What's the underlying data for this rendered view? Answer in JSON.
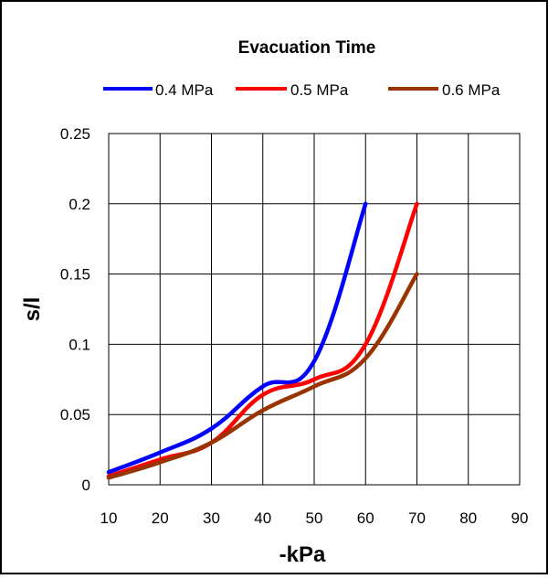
{
  "chart_data": {
    "type": "line",
    "title": "Evacuation Time",
    "xlabel": "-kPa",
    "ylabel": "s/l",
    "xlim": [
      10,
      90
    ],
    "ylim": [
      0,
      0.25
    ],
    "x_ticks": [
      "10",
      "20",
      "30",
      "40",
      "50",
      "60",
      "70",
      "80",
      "90"
    ],
    "y_ticks": [
      "0",
      "0.05",
      "0.1",
      "0.15",
      "0.2",
      "0.25"
    ],
    "grid": true,
    "legend_position": "top",
    "series": [
      {
        "name": "0.4 MPa",
        "color": "#0000ff",
        "x": [
          10,
          20,
          30,
          40,
          50,
          60
        ],
        "y": [
          0.009,
          0.023,
          0.04,
          0.07,
          0.088,
          0.2
        ]
      },
      {
        "name": "0.5 MPa",
        "color": "#ff0000",
        "x": [
          10,
          20,
          30,
          40,
          50,
          60,
          70
        ],
        "y": [
          0.006,
          0.018,
          0.03,
          0.064,
          0.075,
          0.1,
          0.2
        ]
      },
      {
        "name": "0.6 MPa",
        "color": "#993300",
        "x": [
          10,
          20,
          30,
          40,
          50,
          60,
          70
        ],
        "y": [
          0.005,
          0.016,
          0.03,
          0.053,
          0.07,
          0.09,
          0.15
        ]
      }
    ]
  }
}
